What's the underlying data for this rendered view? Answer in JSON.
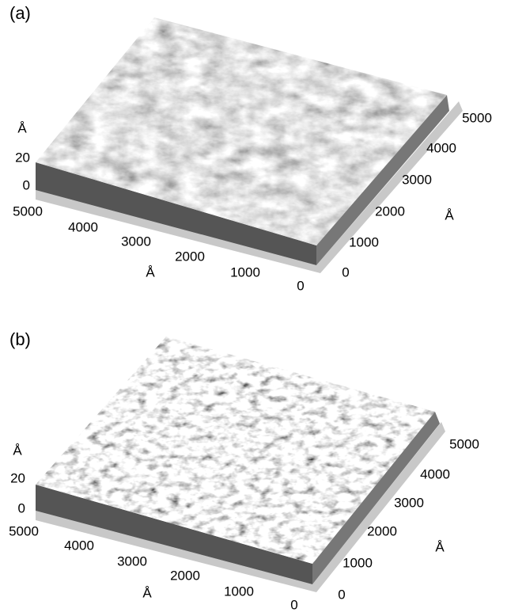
{
  "panels": [
    {
      "label": "(a)",
      "z_axis": {
        "unit": "Å",
        "ticks": [
          20,
          0
        ]
      },
      "x_axis": {
        "unit": "Å",
        "ticks": [
          5000,
          4000,
          3000,
          2000,
          1000,
          0
        ]
      },
      "y_axis": {
        "unit": "Å",
        "ticks": [
          0,
          1000,
          2000,
          3000,
          4000,
          5000
        ]
      }
    },
    {
      "label": "(b)",
      "z_axis": {
        "unit": "Å",
        "ticks": [
          20,
          0
        ]
      },
      "x_axis": {
        "unit": "Å",
        "ticks": [
          5000,
          4000,
          3000,
          2000,
          1000,
          0
        ]
      },
      "y_axis": {
        "unit": "Å",
        "ticks": [
          0,
          1000,
          2000,
          3000,
          4000,
          5000
        ]
      }
    }
  ]
}
